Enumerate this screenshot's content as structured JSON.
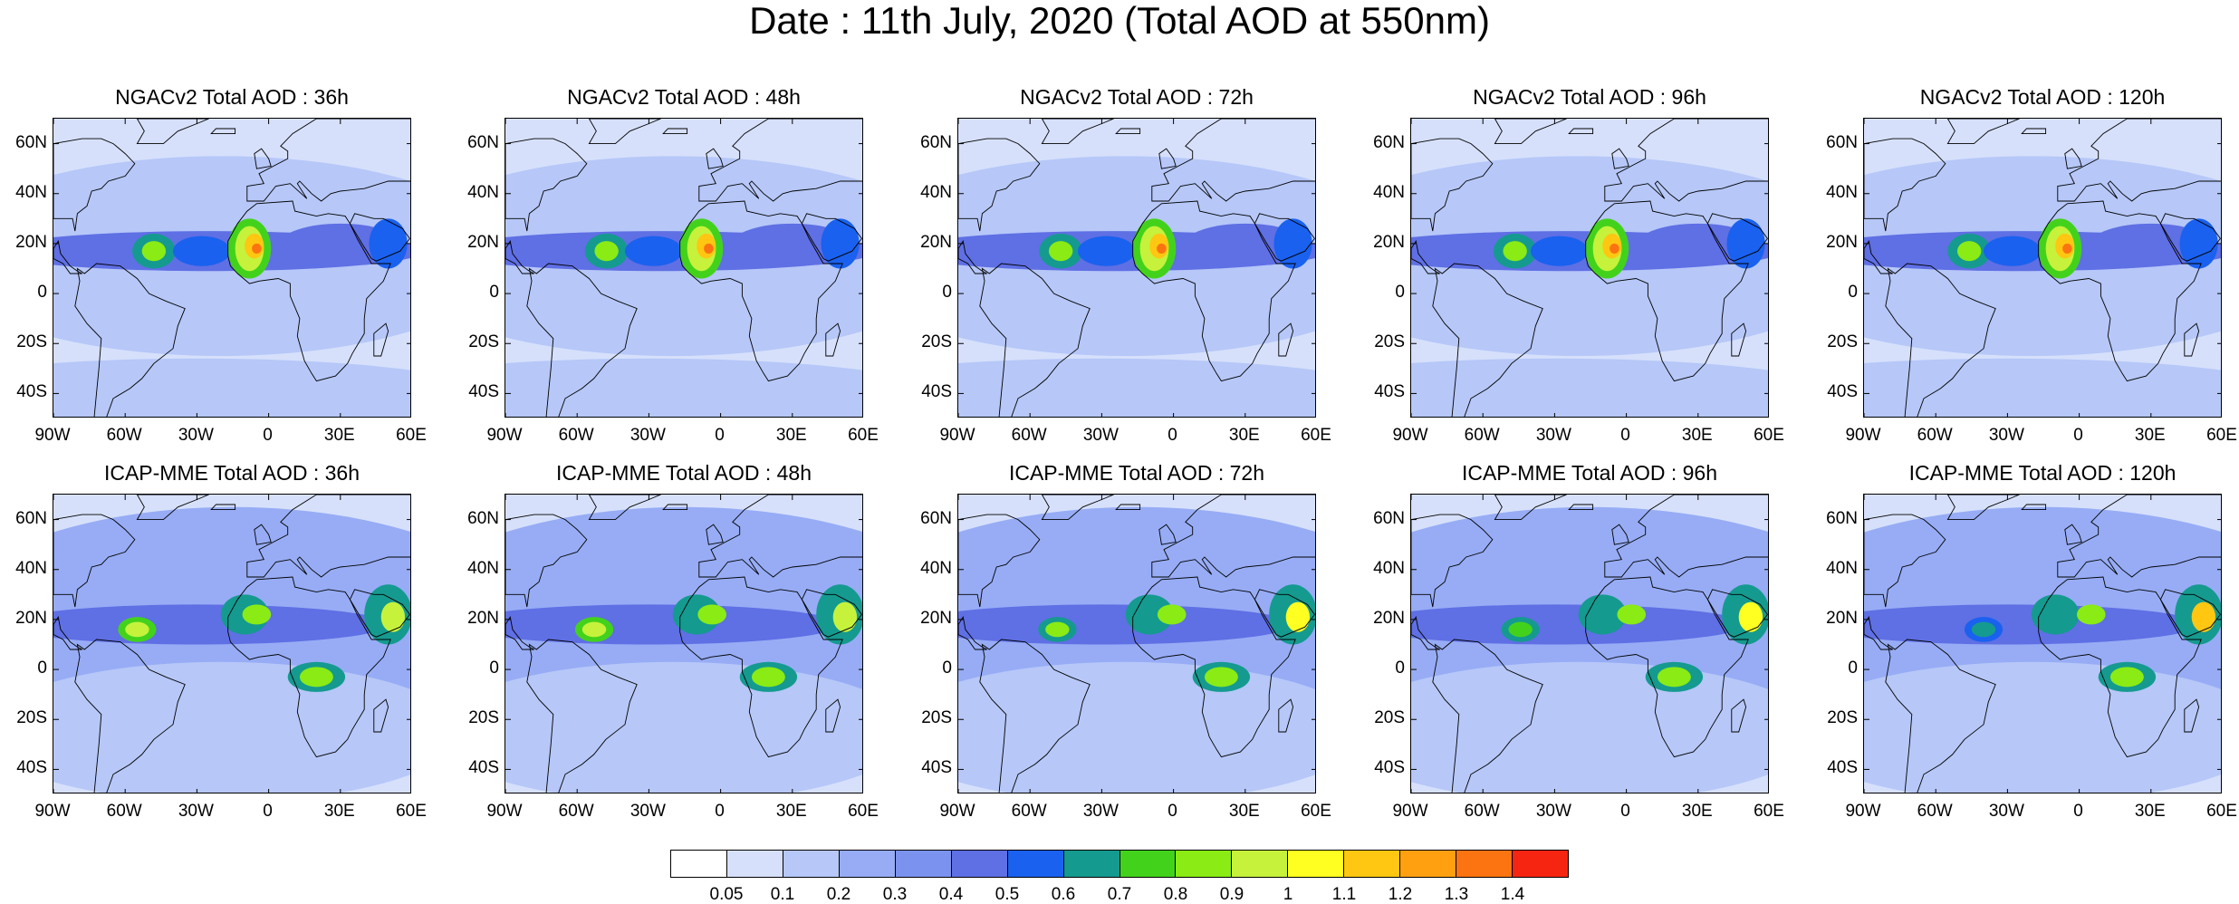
{
  "title": "Date : 11th July, 2020 (Total AOD at 550nm)",
  "rows": [
    {
      "model": "NGACv2",
      "panels": [
        {
          "title": "NGACv2 Total AOD : 36h",
          "lead": 36
        },
        {
          "title": "NGACv2 Total AOD : 48h",
          "lead": 48
        },
        {
          "title": "NGACv2 Total AOD : 72h",
          "lead": 72
        },
        {
          "title": "NGACv2 Total AOD : 96h",
          "lead": 96
        },
        {
          "title": "NGACv2 Total AOD : 120h",
          "lead": 120
        }
      ]
    },
    {
      "model": "ICAP-MME",
      "panels": [
        {
          "title": "ICAP-MME Total AOD : 36h",
          "lead": 36
        },
        {
          "title": "ICAP-MME Total AOD : 48h",
          "lead": 48
        },
        {
          "title": "ICAP-MME Total AOD : 72h",
          "lead": 72
        },
        {
          "title": "ICAP-MME Total AOD : 96h",
          "lead": 96
        },
        {
          "title": "ICAP-MME Total AOD : 120h",
          "lead": 120
        }
      ]
    }
  ],
  "map_extent": {
    "lon": [
      -90,
      60
    ],
    "lat": [
      -50,
      70
    ]
  },
  "lat_ticks": [
    {
      "label": "60N",
      "lat": 60
    },
    {
      "label": "40N",
      "lat": 40
    },
    {
      "label": "20N",
      "lat": 20
    },
    {
      "label": "0",
      "lat": 0
    },
    {
      "label": "20S",
      "lat": -20
    },
    {
      "label": "40S",
      "lat": -40
    }
  ],
  "lon_ticks": [
    {
      "label": "90W",
      "lon": -90
    },
    {
      "label": "60W",
      "lon": -60
    },
    {
      "label": "30W",
      "lon": -30
    },
    {
      "label": "0",
      "lon": 0
    },
    {
      "label": "30E",
      "lon": 30
    },
    {
      "label": "60E",
      "lon": 60
    }
  ],
  "colorbar": {
    "labels": [
      "0.05",
      "0.1",
      "0.2",
      "0.3",
      "0.4",
      "0.5",
      "0.6",
      "0.7",
      "0.8",
      "0.9",
      "1",
      "1.1",
      "1.2",
      "1.3",
      "1.4"
    ],
    "colors": [
      "#ffffff",
      "#d6e0fb",
      "#b6c7f8",
      "#97acf5",
      "#7c92ef",
      "#5f6fe4",
      "#1a61ef",
      "#159a8f",
      "#43d21c",
      "#8aeb15",
      "#c6f23c",
      "#ffff22",
      "#ffc712",
      "#ffa011",
      "#fb7411",
      "#f62512"
    ]
  }
}
